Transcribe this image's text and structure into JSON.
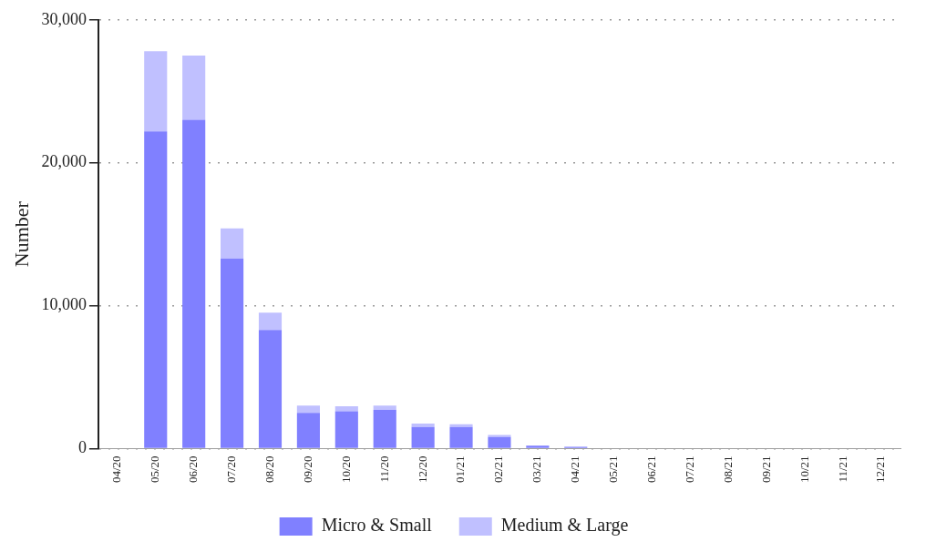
{
  "chart_data": {
    "type": "bar",
    "ylabel": "Number",
    "stacked": true,
    "categories": [
      "04/20",
      "05/20",
      "06/20",
      "07/20",
      "08/20",
      "09/20",
      "10/20",
      "11/20",
      "12/20",
      "01/21",
      "02/21",
      "03/21",
      "04/21",
      "05/21",
      "06/21",
      "07/21",
      "08/21",
      "09/21",
      "10/21",
      "11/21",
      "12/21"
    ],
    "series": [
      {
        "name": "Micro & Small",
        "color": "#8080ff",
        "values": [
          0,
          22200,
          23000,
          13300,
          8300,
          2500,
          2600,
          2700,
          1500,
          1500,
          800,
          200,
          120,
          null,
          null,
          null,
          0,
          0,
          0,
          0,
          0
        ]
      },
      {
        "name": "Medium & Large",
        "color": "#c0c0ff",
        "values": [
          0,
          5600,
          4500,
          2100,
          1200,
          500,
          350,
          300,
          250,
          200,
          150,
          null,
          null,
          null,
          null,
          null,
          0,
          0,
          0,
          0,
          0
        ]
      }
    ],
    "ylim": [
      0,
      30000
    ],
    "yticks": [
      {
        "value": 0,
        "label": "0"
      },
      {
        "value": 10000,
        "label": "10,000"
      },
      {
        "value": 20000,
        "label": "20,000"
      },
      {
        "value": 30000,
        "label": "30,000"
      }
    ],
    "grid": "y",
    "legend": "bottom"
  }
}
